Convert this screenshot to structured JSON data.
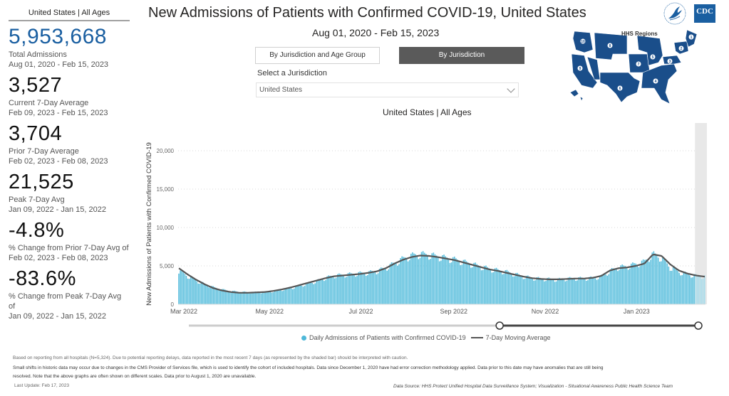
{
  "kpi": {
    "header": "United States | All Ages",
    "items": [
      {
        "value": "5,953,668",
        "label": "Total Admissions",
        "range": "Aug 01, 2020 - Feb 15, 2023",
        "highlight": true
      },
      {
        "value": "3,527",
        "label": "Current 7-Day Average",
        "range": "Feb 09, 2023 - Feb 15, 2023"
      },
      {
        "value": "3,704",
        "label": "Prior 7-Day Average",
        "range": "Feb 02, 2023 - Feb 08, 2023"
      },
      {
        "value": "21,525",
        "label": "Peak 7-Day Avg",
        "range": "Jan 09, 2022 - Jan 15, 2022"
      },
      {
        "value": "-4.8%",
        "label": "% Change from Prior 7-Day Avg of",
        "range": "Feb 02, 2023 - Feb 08, 2023"
      },
      {
        "value": "-83.6%",
        "label": "% Change from Peak 7-Day Avg of",
        "range": "Jan 09, 2022 - Jan 15, 2022"
      }
    ]
  },
  "header": {
    "title": "New Admissions of Patients with Confirmed COVID-19, United States",
    "date_range": "Aug 01, 2020 - Feb 15, 2023"
  },
  "logos": {
    "hhs": "hhs-eagle-icon",
    "cdc_text": "CDC"
  },
  "tabs": [
    {
      "label": "By Jurisdiction and Age Group",
      "active": false
    },
    {
      "label": "By Jurisdiction",
      "active": true
    }
  ],
  "jurisdiction": {
    "label": "Select a Jurisdiction",
    "selected": "United States"
  },
  "map": {
    "title": "HHS Regions",
    "regions": [
      "1",
      "2",
      "3",
      "4",
      "5",
      "6",
      "7",
      "8",
      "9",
      "10"
    ],
    "color": "#1a4e8a"
  },
  "colors": {
    "bar": "#5bbfdd",
    "line": "#555555",
    "shade": "#e8e8e8",
    "kpi_accent": "#1a5fa1"
  },
  "chart_data": {
    "type": "bar",
    "title": "United States | All Ages",
    "xlabel": "",
    "ylabel": "New Admissions of Patients with Confirmed COVID-19",
    "ylim": [
      0,
      22500
    ],
    "yticks": [
      0,
      5000,
      10000,
      15000,
      20000
    ],
    "ytick_labels": [
      "0",
      "5,000",
      "10,000",
      "15,000",
      "20,000"
    ],
    "xtick_labels": [
      "Mar 2022",
      "May 2022",
      "Jul 2022",
      "Sep 2022",
      "Nov 2022",
      "Jan 2023"
    ],
    "x_start": "2022-03-01",
    "x_end": "2023-02-15",
    "grid": true,
    "shaded_recent_days": 7,
    "legend_position": "bottom",
    "series": [
      {
        "name": "Daily Admissions of Patients with Confirmed COVID-19",
        "type": "bar",
        "weekly_anchor_values": [
          4300,
          3700,
          3100,
          2600,
          2200,
          1900,
          1700,
          1600,
          1550,
          1550,
          1600,
          1700,
          1900,
          2100,
          2400,
          2700,
          3000,
          3400,
          3700,
          3800,
          3900,
          4000,
          4100,
          4300,
          4700,
          5300,
          5900,
          6300,
          6500,
          6400,
          6200,
          6000,
          5800,
          5500,
          5200,
          4900,
          4600,
          4400,
          4200,
          3900,
          3600,
          3400,
          3300,
          3250,
          3200,
          3300,
          3350,
          3350,
          3400,
          3600,
          4300,
          4800,
          4900,
          5200,
          5500,
          6500,
          6000,
          4800,
          4200,
          3900,
          3700,
          3600
        ]
      },
      {
        "name": "7-Day Moving Average",
        "type": "line",
        "weekly_anchor_values": [
          4700,
          3900,
          3200,
          2600,
          2100,
          1800,
          1600,
          1500,
          1500,
          1550,
          1600,
          1750,
          1950,
          2200,
          2500,
          2800,
          3100,
          3400,
          3650,
          3750,
          3850,
          3950,
          4100,
          4300,
          4700,
          5300,
          5800,
          6150,
          6350,
          6300,
          6150,
          5950,
          5750,
          5450,
          5150,
          4850,
          4550,
          4350,
          4100,
          3850,
          3600,
          3400,
          3300,
          3250,
          3250,
          3300,
          3350,
          3350,
          3450,
          3700,
          4400,
          4700,
          4800,
          5000,
          5300,
          6500,
          6300,
          5200,
          4400,
          4000,
          3750,
          3600
        ]
      }
    ]
  },
  "range_slider": {
    "start_fraction": 0.61,
    "end_fraction": 1.0
  },
  "legend": {
    "items": [
      "Daily Admissions of Patients with Confirmed COVID-19",
      "7-Day Moving Average"
    ]
  },
  "footer": {
    "note1": "Based on reporting from all hospitals (N=5,324). Due to potential reporting delays, data reported in the most recent 7 days (as represented by the shaded bar) should be interpreted with caution.",
    "note2": "Small shifts in historic data may occur due to changes in the CMS Provider of Services file, which is used to identify the cohort of included hospitals. Data since December 1, 2020 have had error correction methodology applied. Data prior to this date may have anomalies that are still being",
    "note3": "resolved. Note that the above graphs are often shown on different scales. Data prior to August 1, 2020 are unavailable.",
    "last_update": "Last Update: Feb 17, 2023",
    "source": "Data Source: HHS Protect Unified Hospital Data Surveillance System; Visualization - Situational Awareness Public Health Science Team"
  }
}
